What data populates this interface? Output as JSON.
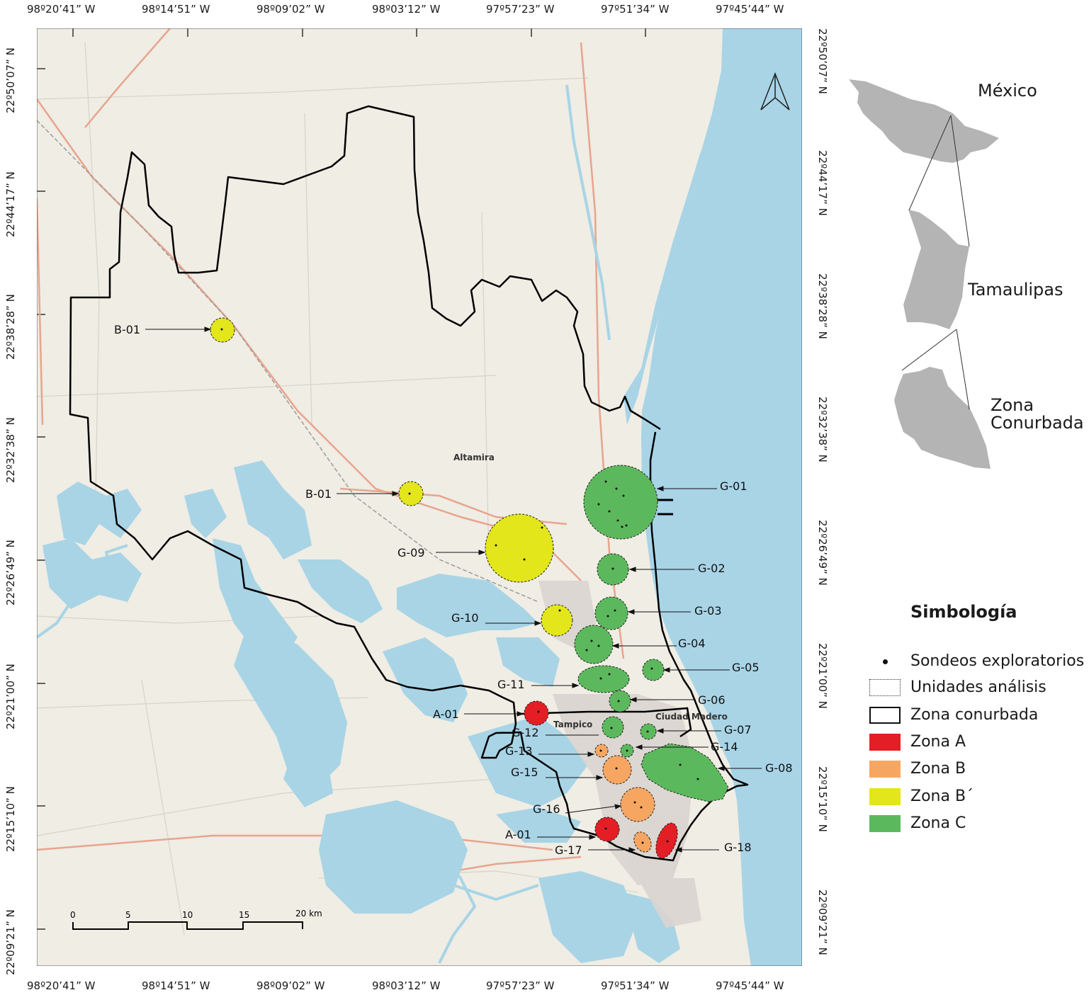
{
  "coordinates": {
    "longitudes": [
      "98º20’41” W",
      "98º14’51” W",
      "98º09’02” W",
      "98º03’12” W",
      "97º57’23” W",
      "97º51’34” W",
      "97º45’44” W"
    ],
    "latitudes": [
      "22º50’07” N",
      "22º44’17” N",
      "22º38’28” N",
      "22º32’38” N",
      "22º26’49” N",
      "22º21’00” N",
      "22º15’10” N",
      "22º09’21” N"
    ]
  },
  "map": {
    "places": {
      "altamira": "Altamira",
      "tampico": "Tampico",
      "ciudad_madero": "Ciudad Madero"
    },
    "scale_bar": {
      "ticks": [
        "0",
        "5",
        "10",
        "15",
        "20 km"
      ]
    },
    "north_arrow": "north-arrow-icon",
    "colors": {
      "water": "#a8d4e6",
      "land": "#efede4",
      "zone_a": "#e31e24",
      "zone_b": "#f7a661",
      "zone_b_prime": "#e2e61a",
      "zone_c": "#5cb85c"
    },
    "markers": [
      {
        "label": "B-01",
        "zone": "Zona B´"
      },
      {
        "label": "B-01",
        "zone": "Zona B´"
      },
      {
        "label": "G-01",
        "zone": "Zona C"
      },
      {
        "label": "G-09",
        "zone": "Zona B´"
      },
      {
        "label": "G-02",
        "zone": "Zona C"
      },
      {
        "label": "G-03",
        "zone": "Zona C"
      },
      {
        "label": "G-10",
        "zone": "Zona B´"
      },
      {
        "label": "G-04",
        "zone": "Zona C"
      },
      {
        "label": "G-05",
        "zone": "Zona C"
      },
      {
        "label": "G-11",
        "zone": "Zona C"
      },
      {
        "label": "G-06",
        "zone": "Zona C"
      },
      {
        "label": "A-01",
        "zone": "Zona A"
      },
      {
        "label": "G-12",
        "zone": "Zona C"
      },
      {
        "label": "G-07",
        "zone": "Zona C"
      },
      {
        "label": "G-14",
        "zone": "Zona C"
      },
      {
        "label": "G-13",
        "zone": "Zona B"
      },
      {
        "label": "G-08",
        "zone": "Zona C"
      },
      {
        "label": "G-15",
        "zone": "Zona B"
      },
      {
        "label": "G-16",
        "zone": "Zona B"
      },
      {
        "label": "A-01",
        "zone": "Zona A"
      },
      {
        "label": "G-17",
        "zone": "Zona B"
      },
      {
        "label": "G-18",
        "zone": "Zona A"
      }
    ]
  },
  "inset": {
    "mexico": "México",
    "tamaulipas": "Tamaulipas",
    "zona_line1": "Zona",
    "zona_line2": "Conurbada"
  },
  "legend": {
    "title": "Simbología",
    "items": [
      {
        "label": "Sondeos exploratorios",
        "type": "dot"
      },
      {
        "label": "Unidades análisis",
        "type": "dotted"
      },
      {
        "label": "Zona conurbada",
        "type": "outline"
      },
      {
        "label": "Zona A",
        "color": "#e31e24"
      },
      {
        "label": "Zona B",
        "color": "#f7a661"
      },
      {
        "label": "Zona B´",
        "color": "#e2e61a"
      },
      {
        "label": "Zona C",
        "color": "#5cb85c"
      }
    ]
  }
}
